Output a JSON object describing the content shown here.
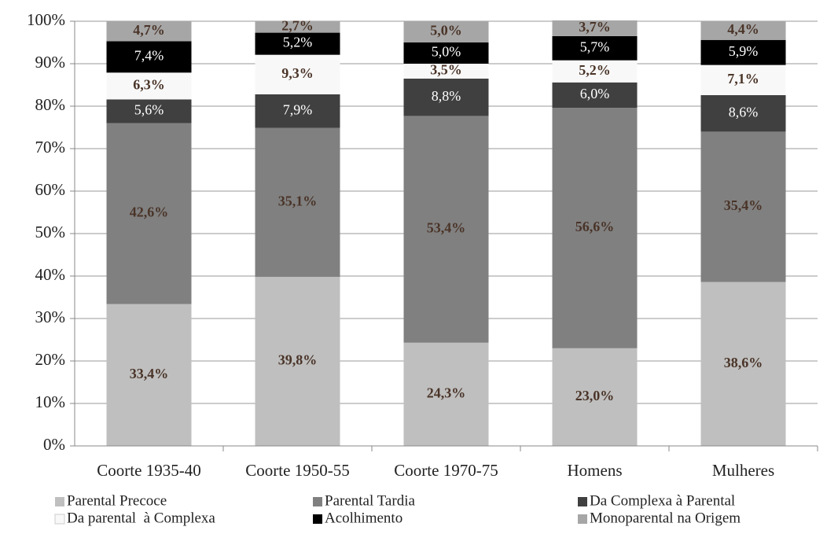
{
  "chart_data": {
    "type": "stacked_bar",
    "categories": [
      "Coorte 1935-40",
      "Coorte 1950-55",
      "Coorte 1970-75",
      "Homens",
      "Mulheres"
    ],
    "series": [
      {
        "name": "Parental Precoce",
        "color": "#bfbfbf",
        "label_color": "#4a3428",
        "label_bold": true,
        "values": [
          33.4,
          39.8,
          24.3,
          23.0,
          38.6
        ],
        "value_labels": [
          "33,4%",
          "39,8%",
          "24,3%",
          "23,0%",
          "38,6%"
        ]
      },
      {
        "name": "Parental Tardia",
        "color": "#808080",
        "label_color": "#4a3428",
        "label_bold": true,
        "values": [
          42.6,
          35.1,
          53.4,
          56.6,
          35.4
        ],
        "value_labels": [
          "42,6%",
          "35,1%",
          "53,4%",
          "56,6%",
          "35,4%"
        ]
      },
      {
        "name": "Da Complexa à Parental",
        "color": "#404040",
        "label_color": "#ffffff",
        "label_bold": false,
        "values": [
          5.6,
          7.9,
          8.8,
          6.0,
          8.6
        ],
        "value_labels": [
          "5,6%",
          "7,9%",
          "8,8%",
          "6,0%",
          "8,6%"
        ]
      },
      {
        "name": "Da parental  à Complexa",
        "color": "#f8f8f8",
        "label_color": "#4a3428",
        "label_bold": true,
        "values": [
          6.3,
          9.3,
          3.5,
          5.2,
          7.1
        ],
        "value_labels": [
          "6,3%",
          "9,3%",
          "3,5%",
          "5,2%",
          "7,1%"
        ]
      },
      {
        "name": "Acolhimento",
        "color": "#000000",
        "label_color": "#ffffff",
        "label_bold": false,
        "values": [
          7.4,
          5.2,
          5.0,
          5.7,
          5.9
        ],
        "value_labels": [
          "7,4%",
          "5,2%",
          "5,0%",
          "5,7%",
          "5,9%"
        ]
      },
      {
        "name": "Monoparental na Origem",
        "color": "#a6a6a6",
        "label_color": "#4a3428",
        "label_bold": true,
        "values": [
          4.7,
          2.7,
          5.0,
          3.7,
          4.4
        ],
        "value_labels": [
          "4,7%",
          "2,7%",
          "5,0%",
          "3,7%",
          "4,4%"
        ]
      }
    ],
    "ylim": [
      0,
      100
    ],
    "yticks": [
      {
        "value": 0,
        "label": "0%"
      },
      {
        "value": 10,
        "label": "10%"
      },
      {
        "value": 20,
        "label": "20%"
      },
      {
        "value": 30,
        "label": "30%"
      },
      {
        "value": 40,
        "label": "40%"
      },
      {
        "value": 50,
        "label": "50%"
      },
      {
        "value": 60,
        "label": "60%"
      },
      {
        "value": 70,
        "label": "70%"
      },
      {
        "value": 80,
        "label": "80%"
      },
      {
        "value": 90,
        "label": "90%"
      },
      {
        "value": 100,
        "label": "100%"
      }
    ],
    "grid": true
  }
}
